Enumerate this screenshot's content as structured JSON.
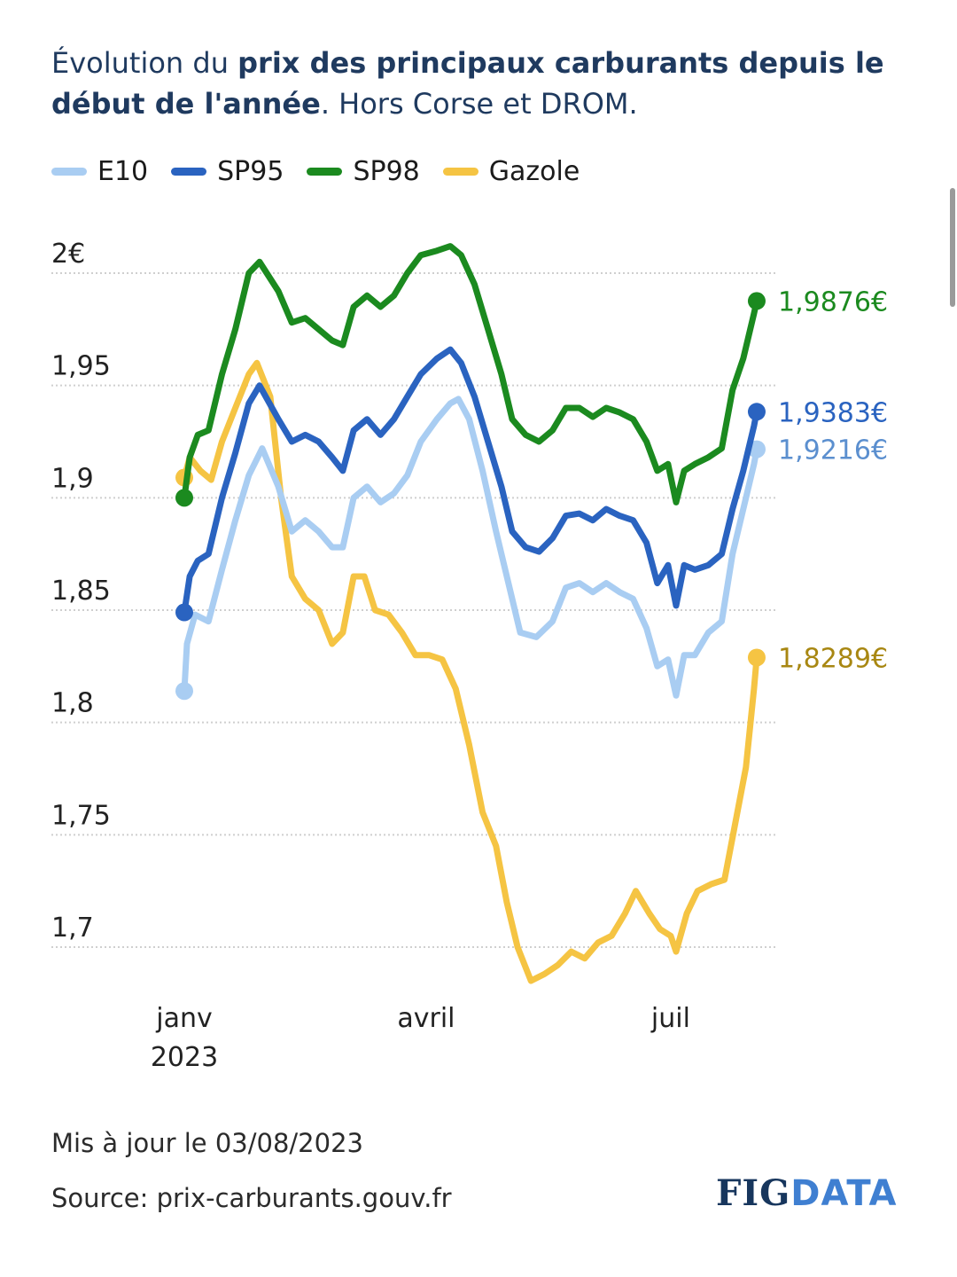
{
  "title": {
    "part1": "Évolution du ",
    "part2": "prix des principaux carburants depuis le début de l'année",
    "part3": ". Hors Corse et DROM."
  },
  "footer": {
    "updated": "Mis à jour le 03/08/2023",
    "source": "Source: prix-carburants.gouv.fr"
  },
  "logo": {
    "part1": "FIG",
    "part2": "DATA"
  },
  "colors": {
    "E10": "#a9cdf2",
    "SP95": "#2a63c0",
    "SP98": "#1b8a1f",
    "Gazole": "#f5c443",
    "grid": "#cfcfcf"
  },
  "chart_data": {
    "type": "line",
    "title": "Évolution du prix des principaux carburants depuis le début de l'année. Hors Corse et DROM.",
    "xlabel": "",
    "ylabel": "",
    "ylim": [
      1.685,
      2.01
    ],
    "yticks": [
      {
        "value": 2.0,
        "label": "2€"
      },
      {
        "value": 1.95,
        "label": "1,95"
      },
      {
        "value": 1.9,
        "label": "1,9"
      },
      {
        "value": 1.85,
        "label": "1,85"
      },
      {
        "value": 1.8,
        "label": "1,8"
      },
      {
        "value": 1.75,
        "label": "1,75"
      },
      {
        "value": 1.7,
        "label": "1,7"
      }
    ],
    "xticks": [
      {
        "x": "2023-01-01",
        "label": "janv",
        "label2": "2023"
      },
      {
        "x": "2023-04-01",
        "label": "avril",
        "label2": ""
      },
      {
        "x": "2023-07-01",
        "label": "juil",
        "label2": ""
      }
    ],
    "xlim": [
      "2023-01-01",
      "2023-08-03"
    ],
    "grid": true,
    "legend_position": "top",
    "series": [
      {
        "name": "E10",
        "end_label": "1,9216€",
        "points": [
          [
            "2023-01-01",
            1.814
          ],
          [
            "2023-01-02",
            1.835
          ],
          [
            "2023-01-05",
            1.848
          ],
          [
            "2023-01-10",
            1.845
          ],
          [
            "2023-01-15",
            1.868
          ],
          [
            "2023-01-20",
            1.89
          ],
          [
            "2023-01-25",
            1.91
          ],
          [
            "2023-01-30",
            1.922
          ],
          [
            "2023-02-05",
            1.905
          ],
          [
            "2023-02-10",
            1.885
          ],
          [
            "2023-02-15",
            1.89
          ],
          [
            "2023-02-20",
            1.885
          ],
          [
            "2023-02-25",
            1.878
          ],
          [
            "2023-03-01",
            1.878
          ],
          [
            "2023-03-05",
            1.9
          ],
          [
            "2023-03-10",
            1.905
          ],
          [
            "2023-03-15",
            1.898
          ],
          [
            "2023-03-20",
            1.902
          ],
          [
            "2023-03-25",
            1.91
          ],
          [
            "2023-03-30",
            1.925
          ],
          [
            "2023-04-05",
            1.935
          ],
          [
            "2023-04-10",
            1.942
          ],
          [
            "2023-04-13",
            1.944
          ],
          [
            "2023-04-17",
            1.935
          ],
          [
            "2023-04-22",
            1.912
          ],
          [
            "2023-04-27",
            1.885
          ],
          [
            "2023-05-02",
            1.86
          ],
          [
            "2023-05-06",
            1.84
          ],
          [
            "2023-05-12",
            1.838
          ],
          [
            "2023-05-18",
            1.845
          ],
          [
            "2023-05-23",
            1.86
          ],
          [
            "2023-05-28",
            1.862
          ],
          [
            "2023-06-02",
            1.858
          ],
          [
            "2023-06-07",
            1.862
          ],
          [
            "2023-06-12",
            1.858
          ],
          [
            "2023-06-17",
            1.855
          ],
          [
            "2023-06-22",
            1.842
          ],
          [
            "2023-06-26",
            1.825
          ],
          [
            "2023-06-30",
            1.828
          ],
          [
            "2023-07-03",
            1.812
          ],
          [
            "2023-07-06",
            1.83
          ],
          [
            "2023-07-10",
            1.83
          ],
          [
            "2023-07-15",
            1.84
          ],
          [
            "2023-07-20",
            1.845
          ],
          [
            "2023-07-24",
            1.875
          ],
          [
            "2023-07-28",
            1.895
          ],
          [
            "2023-08-01",
            1.915
          ],
          [
            "2023-08-02",
            1.9216
          ]
        ]
      },
      {
        "name": "SP95",
        "end_label": "1,9383€",
        "points": [
          [
            "2023-01-01",
            1.849
          ],
          [
            "2023-01-03",
            1.865
          ],
          [
            "2023-01-06",
            1.872
          ],
          [
            "2023-01-10",
            1.875
          ],
          [
            "2023-01-15",
            1.9
          ],
          [
            "2023-01-20",
            1.92
          ],
          [
            "2023-01-25",
            1.942
          ],
          [
            "2023-01-29",
            1.95
          ],
          [
            "2023-02-05",
            1.935
          ],
          [
            "2023-02-10",
            1.925
          ],
          [
            "2023-02-15",
            1.928
          ],
          [
            "2023-02-20",
            1.925
          ],
          [
            "2023-02-25",
            1.918
          ],
          [
            "2023-03-01",
            1.912
          ],
          [
            "2023-03-05",
            1.93
          ],
          [
            "2023-03-10",
            1.935
          ],
          [
            "2023-03-15",
            1.928
          ],
          [
            "2023-03-20",
            1.935
          ],
          [
            "2023-03-25",
            1.945
          ],
          [
            "2023-03-30",
            1.955
          ],
          [
            "2023-04-05",
            1.962
          ],
          [
            "2023-04-10",
            1.966
          ],
          [
            "2023-04-14",
            1.96
          ],
          [
            "2023-04-19",
            1.945
          ],
          [
            "2023-04-24",
            1.925
          ],
          [
            "2023-04-29",
            1.905
          ],
          [
            "2023-05-03",
            1.885
          ],
          [
            "2023-05-08",
            1.878
          ],
          [
            "2023-05-13",
            1.876
          ],
          [
            "2023-05-18",
            1.882
          ],
          [
            "2023-05-23",
            1.892
          ],
          [
            "2023-05-28",
            1.893
          ],
          [
            "2023-06-02",
            1.89
          ],
          [
            "2023-06-07",
            1.895
          ],
          [
            "2023-06-12",
            1.892
          ],
          [
            "2023-06-17",
            1.89
          ],
          [
            "2023-06-22",
            1.88
          ],
          [
            "2023-06-26",
            1.862
          ],
          [
            "2023-06-30",
            1.87
          ],
          [
            "2023-07-03",
            1.852
          ],
          [
            "2023-07-06",
            1.87
          ],
          [
            "2023-07-10",
            1.868
          ],
          [
            "2023-07-15",
            1.87
          ],
          [
            "2023-07-20",
            1.875
          ],
          [
            "2023-07-24",
            1.895
          ],
          [
            "2023-07-28",
            1.912
          ],
          [
            "2023-08-01",
            1.932
          ],
          [
            "2023-08-02",
            1.9383
          ]
        ]
      },
      {
        "name": "SP98",
        "end_label": "1,9876€",
        "points": [
          [
            "2023-01-01",
            1.9
          ],
          [
            "2023-01-03",
            1.918
          ],
          [
            "2023-01-06",
            1.928
          ],
          [
            "2023-01-10",
            1.93
          ],
          [
            "2023-01-15",
            1.955
          ],
          [
            "2023-01-20",
            1.975
          ],
          [
            "2023-01-25",
            2.0
          ],
          [
            "2023-01-29",
            2.005
          ],
          [
            "2023-02-05",
            1.992
          ],
          [
            "2023-02-10",
            1.978
          ],
          [
            "2023-02-15",
            1.98
          ],
          [
            "2023-02-20",
            1.975
          ],
          [
            "2023-02-25",
            1.97
          ],
          [
            "2023-03-01",
            1.968
          ],
          [
            "2023-03-05",
            1.985
          ],
          [
            "2023-03-10",
            1.99
          ],
          [
            "2023-03-15",
            1.985
          ],
          [
            "2023-03-20",
            1.99
          ],
          [
            "2023-03-25",
            2.0
          ],
          [
            "2023-03-30",
            2.008
          ],
          [
            "2023-04-05",
            2.01
          ],
          [
            "2023-04-10",
            2.012
          ],
          [
            "2023-04-14",
            2.008
          ],
          [
            "2023-04-19",
            1.995
          ],
          [
            "2023-04-24",
            1.975
          ],
          [
            "2023-04-29",
            1.955
          ],
          [
            "2023-05-03",
            1.935
          ],
          [
            "2023-05-08",
            1.928
          ],
          [
            "2023-05-13",
            1.925
          ],
          [
            "2023-05-18",
            1.93
          ],
          [
            "2023-05-23",
            1.94
          ],
          [
            "2023-05-28",
            1.94
          ],
          [
            "2023-06-02",
            1.936
          ],
          [
            "2023-06-07",
            1.94
          ],
          [
            "2023-06-12",
            1.938
          ],
          [
            "2023-06-17",
            1.935
          ],
          [
            "2023-06-22",
            1.925
          ],
          [
            "2023-06-26",
            1.912
          ],
          [
            "2023-06-30",
            1.915
          ],
          [
            "2023-07-03",
            1.898
          ],
          [
            "2023-07-06",
            1.912
          ],
          [
            "2023-07-10",
            1.915
          ],
          [
            "2023-07-15",
            1.918
          ],
          [
            "2023-07-20",
            1.922
          ],
          [
            "2023-07-24",
            1.948
          ],
          [
            "2023-07-28",
            1.962
          ],
          [
            "2023-08-01",
            1.982
          ],
          [
            "2023-08-02",
            1.9876
          ]
        ]
      },
      {
        "name": "Gazole",
        "end_label": "1,8289€",
        "points": [
          [
            "2023-01-01",
            1.909
          ],
          [
            "2023-01-03",
            1.918
          ],
          [
            "2023-01-07",
            1.912
          ],
          [
            "2023-01-11",
            1.908
          ],
          [
            "2023-01-15",
            1.925
          ],
          [
            "2023-01-20",
            1.94
          ],
          [
            "2023-01-25",
            1.955
          ],
          [
            "2023-01-28",
            1.96
          ],
          [
            "2023-02-02",
            1.945
          ],
          [
            "2023-02-06",
            1.9
          ],
          [
            "2023-02-10",
            1.865
          ],
          [
            "2023-02-15",
            1.855
          ],
          [
            "2023-02-20",
            1.85
          ],
          [
            "2023-02-25",
            1.835
          ],
          [
            "2023-03-01",
            1.84
          ],
          [
            "2023-03-05",
            1.865
          ],
          [
            "2023-03-09",
            1.865
          ],
          [
            "2023-03-13",
            1.85
          ],
          [
            "2023-03-18",
            1.848
          ],
          [
            "2023-03-23",
            1.84
          ],
          [
            "2023-03-28",
            1.83
          ],
          [
            "2023-04-02",
            1.83
          ],
          [
            "2023-04-07",
            1.828
          ],
          [
            "2023-04-12",
            1.815
          ],
          [
            "2023-04-17",
            1.79
          ],
          [
            "2023-04-22",
            1.76
          ],
          [
            "2023-04-27",
            1.745
          ],
          [
            "2023-05-01",
            1.72
          ],
          [
            "2023-05-05",
            1.7
          ],
          [
            "2023-05-10",
            1.685
          ],
          [
            "2023-05-15",
            1.688
          ],
          [
            "2023-05-20",
            1.692
          ],
          [
            "2023-05-25",
            1.698
          ],
          [
            "2023-05-30",
            1.695
          ],
          [
            "2023-06-04",
            1.702
          ],
          [
            "2023-06-09",
            1.705
          ],
          [
            "2023-06-14",
            1.715
          ],
          [
            "2023-06-18",
            1.725
          ],
          [
            "2023-06-23",
            1.715
          ],
          [
            "2023-06-27",
            1.708
          ],
          [
            "2023-07-01",
            1.705
          ],
          [
            "2023-07-03",
            1.698
          ],
          [
            "2023-07-07",
            1.715
          ],
          [
            "2023-07-11",
            1.725
          ],
          [
            "2023-07-16",
            1.728
          ],
          [
            "2023-07-21",
            1.73
          ],
          [
            "2023-07-25",
            1.755
          ],
          [
            "2023-07-29",
            1.78
          ],
          [
            "2023-08-01",
            1.815
          ],
          [
            "2023-08-02",
            1.8289
          ]
        ]
      }
    ]
  }
}
